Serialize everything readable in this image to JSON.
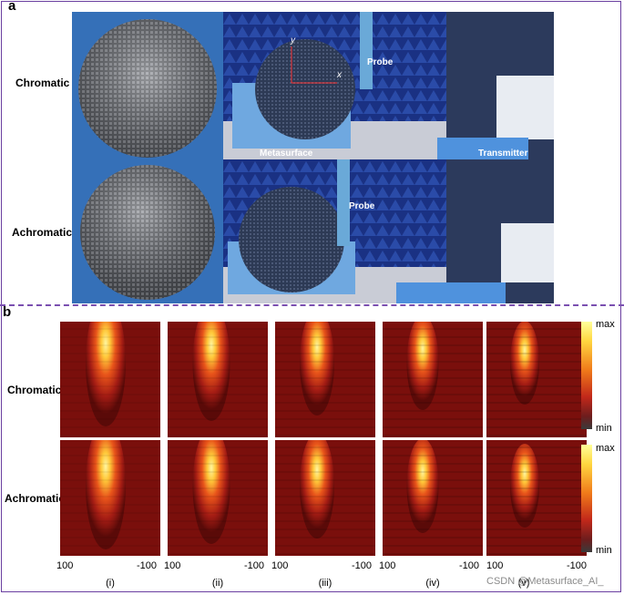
{
  "panels": {
    "a": {
      "letter": "a"
    },
    "b": {
      "letter": "b"
    }
  },
  "row_labels": {
    "chromatic": "Chromatic",
    "achromatic": "Achromatic"
  },
  "photo_labels": {
    "probe": "Probe",
    "metasurface": "Metasurface",
    "transmitter": "Transmitter",
    "axis_y": "y",
    "axis_x": "x"
  },
  "heatmap_columns": [
    "(i)",
    "(ii)",
    "(iii)",
    "(iv)",
    "(v)"
  ],
  "x_ticks": {
    "left": "100",
    "right": "-100"
  },
  "colorbar": {
    "max": "max",
    "min": "min"
  },
  "watermark": "CSDN @Metasurface_AI_",
  "colors": {
    "frame": "#6a3fa0",
    "divider": "#7a4fb0",
    "anechoic_blue": "#1f3a8a",
    "photo_bg": "#2f63b3"
  }
}
